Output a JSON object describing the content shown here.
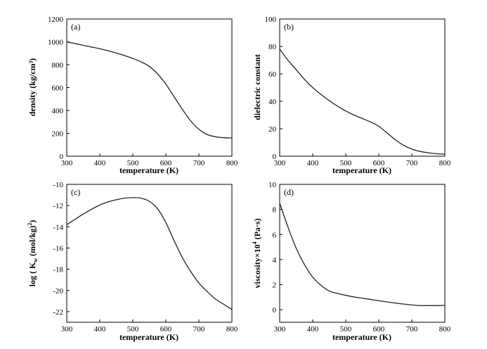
{
  "chart_data": [
    {
      "type": "line",
      "panel_label": "(a)",
      "xlabel": "temperature (K)",
      "ylabel": "density (kg/cm³)",
      "xlim": [
        300,
        800
      ],
      "ylim": [
        0,
        1200
      ],
      "x_ticks": [
        300,
        400,
        500,
        600,
        700,
        800
      ],
      "y_ticks": [
        0,
        200,
        400,
        600,
        800,
        1000,
        1200
      ],
      "grid": false,
      "series": [
        {
          "x": [
            300,
            325,
            350,
            375,
            400,
            425,
            450,
            475,
            500,
            525,
            550,
            575,
            600,
            625,
            650,
            675,
            700,
            725,
            750,
            775,
            800
          ],
          "y": [
            1000,
            985,
            970,
            955,
            940,
            922,
            902,
            880,
            855,
            825,
            785,
            720,
            630,
            520,
            410,
            310,
            235,
            190,
            170,
            162,
            160
          ]
        }
      ]
    },
    {
      "type": "line",
      "panel_label": "(b)",
      "xlabel": "temperature (K)",
      "ylabel": "dielectric constant",
      "xlim": [
        300,
        800
      ],
      "ylim": [
        0,
        100
      ],
      "x_ticks": [
        300,
        400,
        500,
        600,
        700,
        800
      ],
      "y_ticks": [
        0,
        20,
        40,
        60,
        80,
        100
      ],
      "grid": false,
      "series": [
        {
          "x": [
            300,
            325,
            350,
            375,
            400,
            425,
            450,
            475,
            500,
            525,
            550,
            575,
            600,
            625,
            650,
            675,
            700,
            725,
            750,
            775,
            800
          ],
          "y": [
            78,
            70,
            63,
            56,
            50,
            45,
            40.5,
            36.5,
            33,
            30,
            27.5,
            25,
            21.8,
            17,
            12,
            8,
            5.2,
            3.5,
            2.5,
            1.8,
            1.5
          ]
        }
      ]
    },
    {
      "type": "line",
      "panel_label": "(c)",
      "xlabel": "temperature (K)",
      "ylabel": "log ( Kw (mol/kg)² )",
      "ylabel_main": "log ( K",
      "ylabel_sub": "w",
      "ylabel_rest": " (mol/kg)",
      "ylabel_sup": "2",
      "ylabel_end": ")",
      "xlim": [
        300,
        800
      ],
      "ylim": [
        -23,
        -10
      ],
      "x_ticks": [
        300,
        400,
        500,
        600,
        700,
        800
      ],
      "y_ticks": [
        -22,
        -20,
        -18,
        -16,
        -14,
        -12,
        -10
      ],
      "grid": false,
      "series": [
        {
          "x": [
            300,
            325,
            350,
            375,
            400,
            425,
            450,
            475,
            500,
            525,
            550,
            575,
            600,
            625,
            650,
            675,
            700,
            725,
            750,
            775,
            800
          ],
          "y": [
            -13.8,
            -13.3,
            -12.8,
            -12.35,
            -11.95,
            -11.65,
            -11.45,
            -11.3,
            -11.25,
            -11.3,
            -11.6,
            -12.3,
            -13.6,
            -15.3,
            -16.9,
            -18.2,
            -19.3,
            -20.1,
            -20.8,
            -21.3,
            -21.8
          ]
        }
      ]
    },
    {
      "type": "line",
      "panel_label": "(d)",
      "xlabel": "temperature (K)",
      "ylabel": "viscosity×10⁴ (Pa·s)",
      "ylabel_main": "viscosity×10",
      "ylabel_sup": "4",
      "ylabel_rest": " (Pa·s)",
      "xlim": [
        300,
        800
      ],
      "ylim": [
        -1,
        10
      ],
      "x_ticks": [
        300,
        400,
        500,
        600,
        700,
        800
      ],
      "y_ticks": [
        0,
        2,
        4,
        6,
        8,
        10
      ],
      "grid": false,
      "series": [
        {
          "x": [
            300,
            325,
            350,
            375,
            400,
            425,
            450,
            475,
            500,
            525,
            550,
            575,
            600,
            625,
            650,
            675,
            700,
            725,
            750,
            775,
            800
          ],
          "y": [
            8.5,
            6.6,
            4.9,
            3.6,
            2.6,
            1.95,
            1.5,
            1.3,
            1.15,
            1.02,
            0.92,
            0.82,
            0.72,
            0.62,
            0.53,
            0.45,
            0.38,
            0.33,
            0.33,
            0.33,
            0.34
          ]
        }
      ]
    }
  ]
}
